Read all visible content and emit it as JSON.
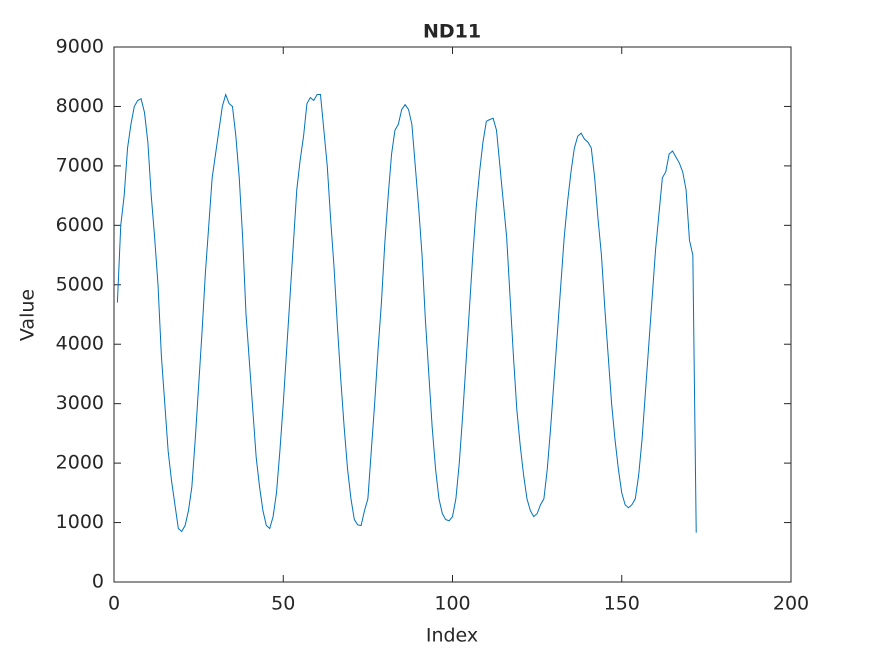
{
  "chart_data": {
    "type": "line",
    "title": "ND11",
    "x_label": "Index",
    "y_label": "Value",
    "color": "#0072bd",
    "xlim": [
      0,
      200
    ],
    "xticks": [
      0,
      50,
      100,
      150,
      200
    ],
    "ylim": [
      0,
      9000
    ],
    "yticks": [
      0,
      1000,
      2000,
      3000,
      4000,
      5000,
      6000,
      7000,
      8000,
      9000
    ],
    "x": [
      1,
      2,
      3,
      4,
      5,
      6,
      7,
      8,
      9,
      10,
      11,
      12,
      13,
      14,
      15,
      16,
      17,
      18,
      19,
      20,
      21,
      22,
      23,
      24,
      25,
      26,
      27,
      28,
      29,
      30,
      31,
      32,
      33,
      34,
      35,
      36,
      37,
      38,
      39,
      40,
      41,
      42,
      43,
      44,
      45,
      46,
      47,
      48,
      49,
      50,
      51,
      52,
      53,
      54,
      55,
      56,
      57,
      58,
      59,
      60,
      61,
      62,
      63,
      64,
      65,
      66,
      67,
      68,
      69,
      70,
      71,
      72,
      73,
      74,
      75,
      76,
      77,
      78,
      79,
      80,
      81,
      82,
      83,
      84,
      85,
      86,
      87,
      88,
      89,
      90,
      91,
      92,
      93,
      94,
      95,
      96,
      97,
      98,
      99,
      100,
      101,
      102,
      103,
      104,
      105,
      106,
      107,
      108,
      109,
      110,
      111,
      112,
      113,
      114,
      115,
      116,
      117,
      118,
      119,
      120,
      121,
      122,
      123,
      124,
      125,
      126,
      127,
      128,
      129,
      130,
      131,
      132,
      133,
      134,
      135,
      136,
      137,
      138,
      139,
      140,
      141,
      142,
      143,
      144,
      145,
      146,
      147,
      148,
      149,
      150,
      151,
      152,
      153,
      154,
      155,
      156,
      157,
      158,
      159,
      160,
      161,
      162,
      163,
      164,
      165,
      166,
      167,
      168,
      169,
      170,
      171,
      172
    ],
    "values": [
      4700,
      6000,
      6500,
      7300,
      7700,
      8000,
      8100,
      8130,
      7900,
      7400,
      6500,
      5800,
      5000,
      3800,
      3000,
      2200,
      1700,
      1300,
      900,
      850,
      950,
      1200,
      1600,
      2400,
      3300,
      4200,
      5200,
      6000,
      6800,
      7200,
      7600,
      8000,
      8200,
      8050,
      8000,
      7500,
      6800,
      5800,
      4500,
      3700,
      2900,
      2100,
      1600,
      1200,
      950,
      900,
      1100,
      1500,
      2200,
      3000,
      3900,
      4800,
      5700,
      6600,
      7100,
      7500,
      8050,
      8150,
      8100,
      8200,
      8200,
      7600,
      7000,
      6100,
      5300,
      4300,
      3400,
      2600,
      1900,
      1400,
      1050,
      960,
      950,
      1200,
      1400,
      2200,
      3000,
      3900,
      4700,
      5700,
      6500,
      7200,
      7600,
      7700,
      7950,
      8030,
      7950,
      7700,
      7000,
      6300,
      5500,
      4400,
      3500,
      2600,
      1900,
      1400,
      1150,
      1050,
      1030,
      1100,
      1400,
      2000,
      2800,
      3700,
      4600,
      5500,
      6300,
      6900,
      7400,
      7750,
      7780,
      7800,
      7600,
      7000,
      6400,
      5800,
      4800,
      3800,
      2900,
      2300,
      1800,
      1400,
      1200,
      1100,
      1150,
      1300,
      1400,
      1900,
      2600,
      3400,
      4200,
      5000,
      5800,
      6400,
      6900,
      7300,
      7500,
      7550,
      7450,
      7400,
      7300,
      6800,
      6100,
      5500,
      4600,
      3800,
      3000,
      2400,
      1900,
      1500,
      1300,
      1250,
      1300,
      1400,
      1800,
      2400,
      3200,
      4000,
      4800,
      5600,
      6200,
      6800,
      6900,
      7200,
      7250,
      7150,
      7050,
      6900,
      6600,
      5750,
      5500,
      830
    ]
  }
}
